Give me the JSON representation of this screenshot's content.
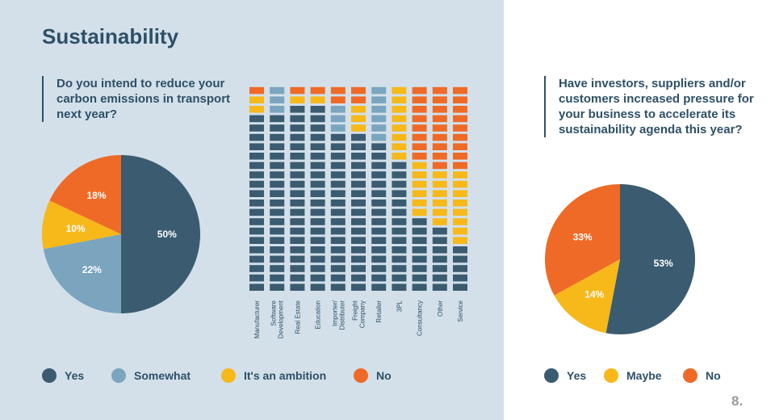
{
  "title": "Sustainability",
  "page_number": "8.",
  "colors": {
    "yes": "#3b5b70",
    "somewhat": "#7ba5bf",
    "ambition": "#f7b81a",
    "no": "#ef6a26"
  },
  "chart_data": [
    {
      "type": "pie",
      "question": "Do you intend to reduce your carbon emissions in transport next year?",
      "slices": [
        {
          "label": "Yes",
          "value": 50,
          "display": "50%",
          "color": "#3b5b70"
        },
        {
          "label": "Somewhat",
          "value": 22,
          "display": "22%",
          "color": "#7ba5bf"
        },
        {
          "label": "It's an ambition",
          "value": 10,
          "display": "10%",
          "color": "#f7b81a"
        },
        {
          "label": "No",
          "value": 18,
          "display": "18%",
          "color": "#ef6a26"
        }
      ],
      "legend": [
        "Yes",
        "Somewhat",
        "It's an ambition",
        "No"
      ],
      "legend_position": "bottom"
    },
    {
      "type": "bar",
      "stacked": true,
      "unit_blocks_per_column": 22,
      "categories": [
        "Manufacturer",
        "Software Development",
        "Real Estate",
        "Education",
        "Importer/ Distributer",
        "Freight Company",
        "Retailer",
        "3PL",
        "Consultancy",
        "Other",
        "Service"
      ],
      "category_lines": [
        [
          "Manufacturer"
        ],
        [
          "Software",
          "Development"
        ],
        [
          "Real Estate"
        ],
        [
          "Education"
        ],
        [
          "Importer/",
          "Distributer"
        ],
        [
          "Freight",
          "Company"
        ],
        [
          "Retailer"
        ],
        [
          "3PL"
        ],
        [
          "Consultancy"
        ],
        [
          "Other"
        ],
        [
          "Service"
        ]
      ],
      "series": [
        {
          "name": "Yes",
          "color": "#3b5b70",
          "values": [
            19,
            19,
            20,
            20,
            17,
            17,
            16,
            14,
            8,
            7,
            5
          ]
        },
        {
          "name": "Somewhat",
          "color": "#7ba5bf",
          "values": [
            0,
            3,
            0,
            0,
            3,
            0,
            6,
            0,
            0,
            0,
            0
          ]
        },
        {
          "name": "It's an ambition",
          "color": "#f7b81a",
          "values": [
            2,
            0,
            1,
            1,
            0,
            3,
            0,
            8,
            6,
            6,
            8
          ]
        },
        {
          "name": "No",
          "color": "#ef6a26",
          "values": [
            1,
            0,
            1,
            1,
            2,
            2,
            0,
            0,
            8,
            9,
            9
          ]
        }
      ]
    },
    {
      "type": "pie",
      "question": "Have investors, suppliers and/or customers increased pressure for your business to accelerate its sustainability agenda this year?",
      "slices": [
        {
          "label": "Yes",
          "value": 53,
          "display": "53%",
          "color": "#3b5b70"
        },
        {
          "label": "Maybe",
          "value": 14,
          "display": "14%",
          "color": "#f7b81a"
        },
        {
          "label": "No",
          "value": 33,
          "display": "33%",
          "color": "#ef6a26"
        }
      ],
      "legend": [
        "Yes",
        "Maybe",
        "No"
      ],
      "legend_position": "bottom"
    }
  ]
}
